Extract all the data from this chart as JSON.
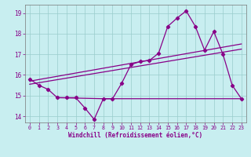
{
  "xlabel": "Windchill (Refroidissement éolien,°C)",
  "background_color": "#c8eef0",
  "grid_color": "#99cccc",
  "line_color": "#880088",
  "xlim": [
    -0.5,
    23.5
  ],
  "ylim": [
    13.7,
    19.4
  ],
  "yticks": [
    14,
    15,
    16,
    17,
    18,
    19
  ],
  "xticks": [
    0,
    1,
    2,
    3,
    4,
    5,
    6,
    7,
    8,
    9,
    10,
    11,
    12,
    13,
    14,
    15,
    16,
    17,
    18,
    19,
    20,
    21,
    22,
    23
  ],
  "series1_x": [
    0,
    1,
    2,
    3,
    4,
    5,
    6,
    7,
    8,
    9,
    10,
    11,
    12,
    13,
    14,
    15,
    16,
    17,
    18,
    19,
    20,
    21,
    22,
    23
  ],
  "series1_y": [
    15.8,
    15.5,
    15.3,
    14.9,
    14.9,
    14.9,
    14.4,
    13.85,
    14.85,
    14.85,
    15.6,
    16.5,
    16.65,
    16.7,
    17.05,
    18.35,
    18.75,
    19.1,
    18.35,
    17.2,
    18.1,
    17.0,
    15.5,
    14.85
  ],
  "series2_x": [
    0,
    23
  ],
  "series2_y": [
    15.7,
    17.5
  ],
  "series3_x": [
    0,
    23
  ],
  "series3_y": [
    15.55,
    17.25
  ],
  "series4_x": [
    3,
    8,
    9,
    14,
    15,
    22,
    23
  ],
  "series4_y": [
    14.9,
    14.85,
    14.85,
    14.85,
    14.85,
    14.85,
    14.85
  ]
}
